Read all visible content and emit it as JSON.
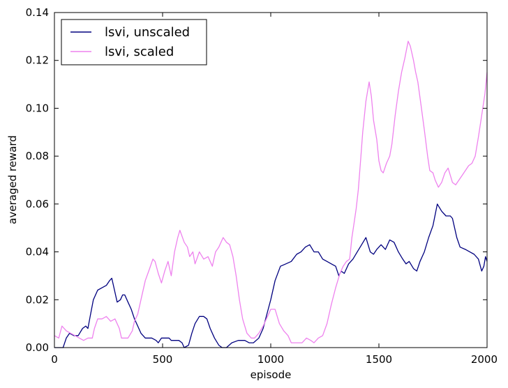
{
  "chart_data": {
    "type": "line",
    "title": "",
    "xlabel": "episode",
    "ylabel": "averaged reward",
    "xlim": [
      0,
      2000
    ],
    "ylim": [
      0,
      0.14
    ],
    "xticks": [
      "0",
      "500",
      "1000",
      "1500",
      "2000"
    ],
    "yticks": [
      "0.00",
      "0.02",
      "0.04",
      "0.06",
      "0.08",
      "0.10",
      "0.12",
      "0.14"
    ],
    "grid": false,
    "legend_position": "top-left",
    "series": [
      {
        "name": "lsvi, unscaled",
        "color": "#00007f",
        "points": [
          [
            0,
            0.0
          ],
          [
            40,
            0.0
          ],
          [
            55,
            0.004
          ],
          [
            70,
            0.006
          ],
          [
            90,
            0.005
          ],
          [
            110,
            0.005
          ],
          [
            130,
            0.008
          ],
          [
            145,
            0.009
          ],
          [
            155,
            0.008
          ],
          [
            165,
            0.013
          ],
          [
            180,
            0.02
          ],
          [
            200,
            0.024
          ],
          [
            220,
            0.025
          ],
          [
            240,
            0.026
          ],
          [
            255,
            0.028
          ],
          [
            265,
            0.029
          ],
          [
            275,
            0.025
          ],
          [
            290,
            0.019
          ],
          [
            305,
            0.02
          ],
          [
            315,
            0.022
          ],
          [
            325,
            0.022
          ],
          [
            340,
            0.019
          ],
          [
            355,
            0.016
          ],
          [
            370,
            0.012
          ],
          [
            385,
            0.009
          ],
          [
            400,
            0.006
          ],
          [
            420,
            0.004
          ],
          [
            450,
            0.004
          ],
          [
            470,
            0.003
          ],
          [
            480,
            0.002
          ],
          [
            495,
            0.004
          ],
          [
            510,
            0.004
          ],
          [
            530,
            0.004
          ],
          [
            540,
            0.003
          ],
          [
            560,
            0.003
          ],
          [
            575,
            0.003
          ],
          [
            590,
            0.002
          ],
          [
            600,
            0.0
          ],
          [
            620,
            0.001
          ],
          [
            635,
            0.006
          ],
          [
            650,
            0.01
          ],
          [
            670,
            0.013
          ],
          [
            690,
            0.013
          ],
          [
            705,
            0.012
          ],
          [
            720,
            0.008
          ],
          [
            740,
            0.004
          ],
          [
            760,
            0.001
          ],
          [
            775,
            0.0
          ],
          [
            795,
            0.0
          ],
          [
            820,
            0.002
          ],
          [
            850,
            0.003
          ],
          [
            880,
            0.003
          ],
          [
            900,
            0.002
          ],
          [
            920,
            0.002
          ],
          [
            945,
            0.004
          ],
          [
            965,
            0.008
          ],
          [
            985,
            0.015
          ],
          [
            1000,
            0.02
          ],
          [
            1020,
            0.028
          ],
          [
            1045,
            0.034
          ],
          [
            1070,
            0.035
          ],
          [
            1095,
            0.036
          ],
          [
            1120,
            0.039
          ],
          [
            1140,
            0.04
          ],
          [
            1160,
            0.042
          ],
          [
            1180,
            0.043
          ],
          [
            1200,
            0.04
          ],
          [
            1220,
            0.04
          ],
          [
            1240,
            0.037
          ],
          [
            1260,
            0.036
          ],
          [
            1280,
            0.035
          ],
          [
            1300,
            0.034
          ],
          [
            1315,
            0.03
          ],
          [
            1325,
            0.032
          ],
          [
            1340,
            0.031
          ],
          [
            1360,
            0.035
          ],
          [
            1380,
            0.037
          ],
          [
            1400,
            0.04
          ],
          [
            1420,
            0.043
          ],
          [
            1440,
            0.046
          ],
          [
            1450,
            0.043
          ],
          [
            1460,
            0.04
          ],
          [
            1475,
            0.039
          ],
          [
            1490,
            0.041
          ],
          [
            1510,
            0.043
          ],
          [
            1530,
            0.041
          ],
          [
            1550,
            0.045
          ],
          [
            1570,
            0.044
          ],
          [
            1590,
            0.04
          ],
          [
            1610,
            0.037
          ],
          [
            1625,
            0.035
          ],
          [
            1640,
            0.036
          ],
          [
            1660,
            0.033
          ],
          [
            1675,
            0.032
          ],
          [
            1690,
            0.036
          ],
          [
            1710,
            0.04
          ],
          [
            1730,
            0.046
          ],
          [
            1750,
            0.051
          ],
          [
            1770,
            0.06
          ],
          [
            1790,
            0.057
          ],
          [
            1810,
            0.055
          ],
          [
            1830,
            0.055
          ],
          [
            1840,
            0.054
          ],
          [
            1850,
            0.05
          ],
          [
            1860,
            0.046
          ],
          [
            1875,
            0.042
          ],
          [
            1900,
            0.041
          ],
          [
            1920,
            0.04
          ],
          [
            1940,
            0.039
          ],
          [
            1960,
            0.037
          ],
          [
            1975,
            0.032
          ],
          [
            1985,
            0.034
          ],
          [
            1993,
            0.038
          ],
          [
            2000,
            0.036
          ]
        ]
      },
      {
        "name": "lsvi, scaled",
        "color": "#ee82ee",
        "points": [
          [
            0,
            0.005
          ],
          [
            20,
            0.004
          ],
          [
            35,
            0.009
          ],
          [
            55,
            0.007
          ],
          [
            75,
            0.006
          ],
          [
            95,
            0.005
          ],
          [
            115,
            0.004
          ],
          [
            135,
            0.003
          ],
          [
            155,
            0.004
          ],
          [
            175,
            0.004
          ],
          [
            185,
            0.008
          ],
          [
            200,
            0.012
          ],
          [
            220,
            0.012
          ],
          [
            240,
            0.013
          ],
          [
            260,
            0.011
          ],
          [
            280,
            0.012
          ],
          [
            300,
            0.008
          ],
          [
            310,
            0.004
          ],
          [
            320,
            0.004
          ],
          [
            340,
            0.004
          ],
          [
            360,
            0.007
          ],
          [
            370,
            0.011
          ],
          [
            385,
            0.014
          ],
          [
            400,
            0.02
          ],
          [
            420,
            0.028
          ],
          [
            440,
            0.033
          ],
          [
            455,
            0.037
          ],
          [
            465,
            0.036
          ],
          [
            480,
            0.031
          ],
          [
            495,
            0.027
          ],
          [
            510,
            0.032
          ],
          [
            525,
            0.036
          ],
          [
            540,
            0.03
          ],
          [
            555,
            0.04
          ],
          [
            570,
            0.046
          ],
          [
            580,
            0.049
          ],
          [
            600,
            0.044
          ],
          [
            615,
            0.042
          ],
          [
            625,
            0.038
          ],
          [
            640,
            0.04
          ],
          [
            650,
            0.035
          ],
          [
            670,
            0.04
          ],
          [
            690,
            0.037
          ],
          [
            710,
            0.038
          ],
          [
            730,
            0.034
          ],
          [
            745,
            0.04
          ],
          [
            760,
            0.042
          ],
          [
            780,
            0.046
          ],
          [
            795,
            0.044
          ],
          [
            810,
            0.043
          ],
          [
            825,
            0.038
          ],
          [
            840,
            0.03
          ],
          [
            855,
            0.02
          ],
          [
            870,
            0.012
          ],
          [
            890,
            0.006
          ],
          [
            910,
            0.004
          ],
          [
            925,
            0.004
          ],
          [
            945,
            0.006
          ],
          [
            965,
            0.009
          ],
          [
            985,
            0.013
          ],
          [
            1000,
            0.016
          ],
          [
            1020,
            0.016
          ],
          [
            1040,
            0.01
          ],
          [
            1060,
            0.007
          ],
          [
            1080,
            0.005
          ],
          [
            1095,
            0.002
          ],
          [
            1120,
            0.002
          ],
          [
            1145,
            0.002
          ],
          [
            1165,
            0.004
          ],
          [
            1185,
            0.003
          ],
          [
            1200,
            0.002
          ],
          [
            1220,
            0.004
          ],
          [
            1240,
            0.005
          ],
          [
            1260,
            0.01
          ],
          [
            1280,
            0.018
          ],
          [
            1300,
            0.025
          ],
          [
            1320,
            0.031
          ],
          [
            1335,
            0.034
          ],
          [
            1350,
            0.036
          ],
          [
            1365,
            0.037
          ],
          [
            1375,
            0.046
          ],
          [
            1385,
            0.052
          ],
          [
            1395,
            0.058
          ],
          [
            1405,
            0.066
          ],
          [
            1415,
            0.078
          ],
          [
            1425,
            0.09
          ],
          [
            1440,
            0.103
          ],
          [
            1455,
            0.111
          ],
          [
            1465,
            0.105
          ],
          [
            1475,
            0.095
          ],
          [
            1490,
            0.087
          ],
          [
            1500,
            0.078
          ],
          [
            1510,
            0.074
          ],
          [
            1520,
            0.073
          ],
          [
            1535,
            0.077
          ],
          [
            1550,
            0.08
          ],
          [
            1560,
            0.085
          ],
          [
            1575,
            0.097
          ],
          [
            1590,
            0.107
          ],
          [
            1605,
            0.115
          ],
          [
            1620,
            0.121
          ],
          [
            1635,
            0.128
          ],
          [
            1645,
            0.126
          ],
          [
            1660,
            0.12
          ],
          [
            1670,
            0.115
          ],
          [
            1680,
            0.111
          ],
          [
            1695,
            0.101
          ],
          [
            1710,
            0.091
          ],
          [
            1725,
            0.08
          ],
          [
            1735,
            0.074
          ],
          [
            1750,
            0.073
          ],
          [
            1760,
            0.07
          ],
          [
            1775,
            0.067
          ],
          [
            1790,
            0.069
          ],
          [
            1805,
            0.073
          ],
          [
            1820,
            0.075
          ],
          [
            1840,
            0.069
          ],
          [
            1855,
            0.068
          ],
          [
            1870,
            0.07
          ],
          [
            1885,
            0.072
          ],
          [
            1900,
            0.074
          ],
          [
            1915,
            0.076
          ],
          [
            1930,
            0.077
          ],
          [
            1945,
            0.08
          ],
          [
            1960,
            0.088
          ],
          [
            1975,
            0.097
          ],
          [
            1990,
            0.106
          ],
          [
            2000,
            0.115
          ]
        ]
      }
    ]
  }
}
